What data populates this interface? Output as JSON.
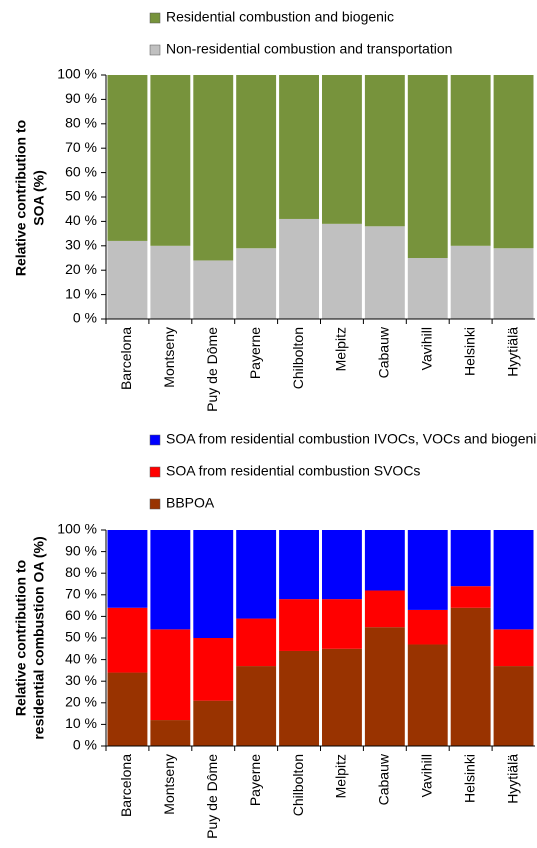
{
  "chart_data": [
    {
      "type": "bar",
      "stacked": true,
      "y_label": [
        "Relative contribution to",
        "SOA (%)"
      ],
      "categories": [
        "Barcelona",
        "Montseny",
        "Puy de Dôme",
        "Payerne",
        "Chilbolton",
        "Melpitz",
        "Cabauw",
        "Vavihill",
        "Helsinki",
        "Hyytiälä"
      ],
      "series": [
        {
          "name": "Non-residential combustion and transportation",
          "color": "#c0c0c0",
          "values": [
            32,
            30,
            24,
            29,
            41,
            39,
            38,
            25,
            30,
            29
          ]
        },
        {
          "name": "Residential combustion and biogenic",
          "color": "#77933c",
          "values": [
            68,
            70,
            76,
            71,
            59,
            61,
            62,
            75,
            70,
            71
          ]
        }
      ],
      "ylim": [
        0,
        100
      ],
      "yticks": [
        {
          "value": 0,
          "label": "0 %"
        },
        {
          "value": 10,
          "label": "10 %"
        },
        {
          "value": 20,
          "label": "20 %"
        },
        {
          "value": 30,
          "label": "30 %"
        },
        {
          "value": 40,
          "label": "40 %"
        },
        {
          "value": 50,
          "label": "50 %"
        },
        {
          "value": 60,
          "label": "60 %"
        },
        {
          "value": 70,
          "label": "70 %"
        },
        {
          "value": 80,
          "label": "80 %"
        },
        {
          "value": 90,
          "label": "90 %"
        },
        {
          "value": 100,
          "label": "100 %"
        }
      ]
    },
    {
      "type": "bar",
      "stacked": true,
      "y_label": [
        "Relative contribution to",
        "residential combustion OA (%)"
      ],
      "categories": [
        "Barcelona",
        "Montseny",
        "Puy de Dôme",
        "Payerne",
        "Chilbolton",
        "Melpitz",
        "Cabauw",
        "Vavihill",
        "Helsinki",
        "Hyytiälä"
      ],
      "series": [
        {
          "name": "BBPOA",
          "color": "#993300",
          "values": [
            34,
            12,
            21,
            37,
            44,
            45,
            55,
            47,
            64,
            37
          ]
        },
        {
          "name": "SOA from  residential combustion SVOCs",
          "color": "#ff0000",
          "values": [
            30,
            42,
            29,
            22,
            24,
            23,
            17,
            16,
            10,
            17
          ]
        },
        {
          "name": "SOA from  residential combustion IVOCs, VOCs and biogenic",
          "color": "#0000ff",
          "values": [
            36,
            46,
            50,
            41,
            32,
            32,
            28,
            37,
            26,
            46
          ]
        }
      ],
      "ylim": [
        0,
        100
      ],
      "yticks": [
        {
          "value": 0,
          "label": "0 %"
        },
        {
          "value": 10,
          "label": "10 %"
        },
        {
          "value": 20,
          "label": "20 %"
        },
        {
          "value": 30,
          "label": "30 %"
        },
        {
          "value": 40,
          "label": "40 %"
        },
        {
          "value": 50,
          "label": "50 %"
        },
        {
          "value": 60,
          "label": "60 %"
        },
        {
          "value": 70,
          "label": "70 %"
        },
        {
          "value": 80,
          "label": "80 %"
        },
        {
          "value": 90,
          "label": "90 %"
        },
        {
          "value": 100,
          "label": "100 %"
        }
      ]
    }
  ]
}
